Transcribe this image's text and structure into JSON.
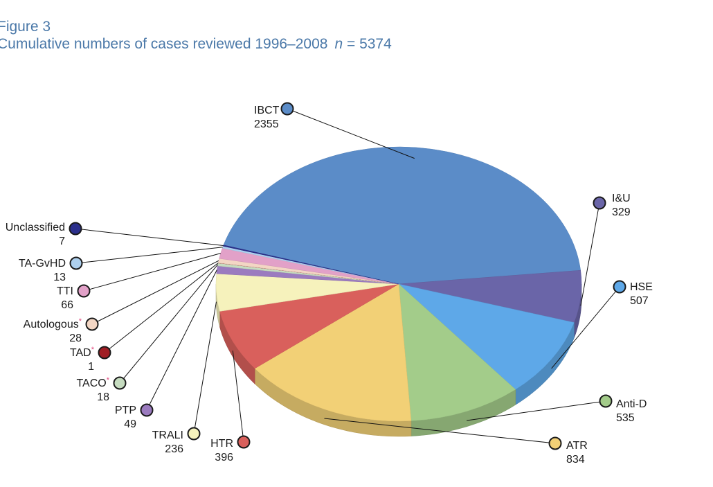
{
  "figure_label": "Figure 3",
  "chart_title_main": "Cumulative numbers of cases reviewed 1996–2008",
  "chart_title_n": "n",
  "chart_title_eq": " = 5374",
  "chart_data": {
    "type": "pie",
    "title": "Cumulative numbers of cases reviewed 1996–2008  n = 5374",
    "total": 5374,
    "categories": [
      "IBCT",
      "I&U",
      "HSE",
      "Anti-D",
      "ATR",
      "HTR",
      "TRALI",
      "PTP",
      "TACO",
      "TAD",
      "Autologous",
      "TTI",
      "TA-GvHD",
      "Unclassified"
    ],
    "values": [
      2355,
      329,
      507,
      535,
      834,
      396,
      236,
      49,
      18,
      1,
      28,
      66,
      13,
      7
    ],
    "annotations": {
      "TACO": "*",
      "TAD": "*",
      "Autologous": "*"
    },
    "colors": [
      "#5b8cc8",
      "#6a65a8",
      "#5ea8e8",
      "#a3cc8a",
      "#f2d076",
      "#d9605c",
      "#f6f2bc",
      "#9b7bbf",
      "#c6dcc0",
      "#a01e24",
      "#f3d6c4",
      "#e2a1c8",
      "#aed0ee",
      "#2b2f8c"
    ],
    "legend": "none"
  }
}
